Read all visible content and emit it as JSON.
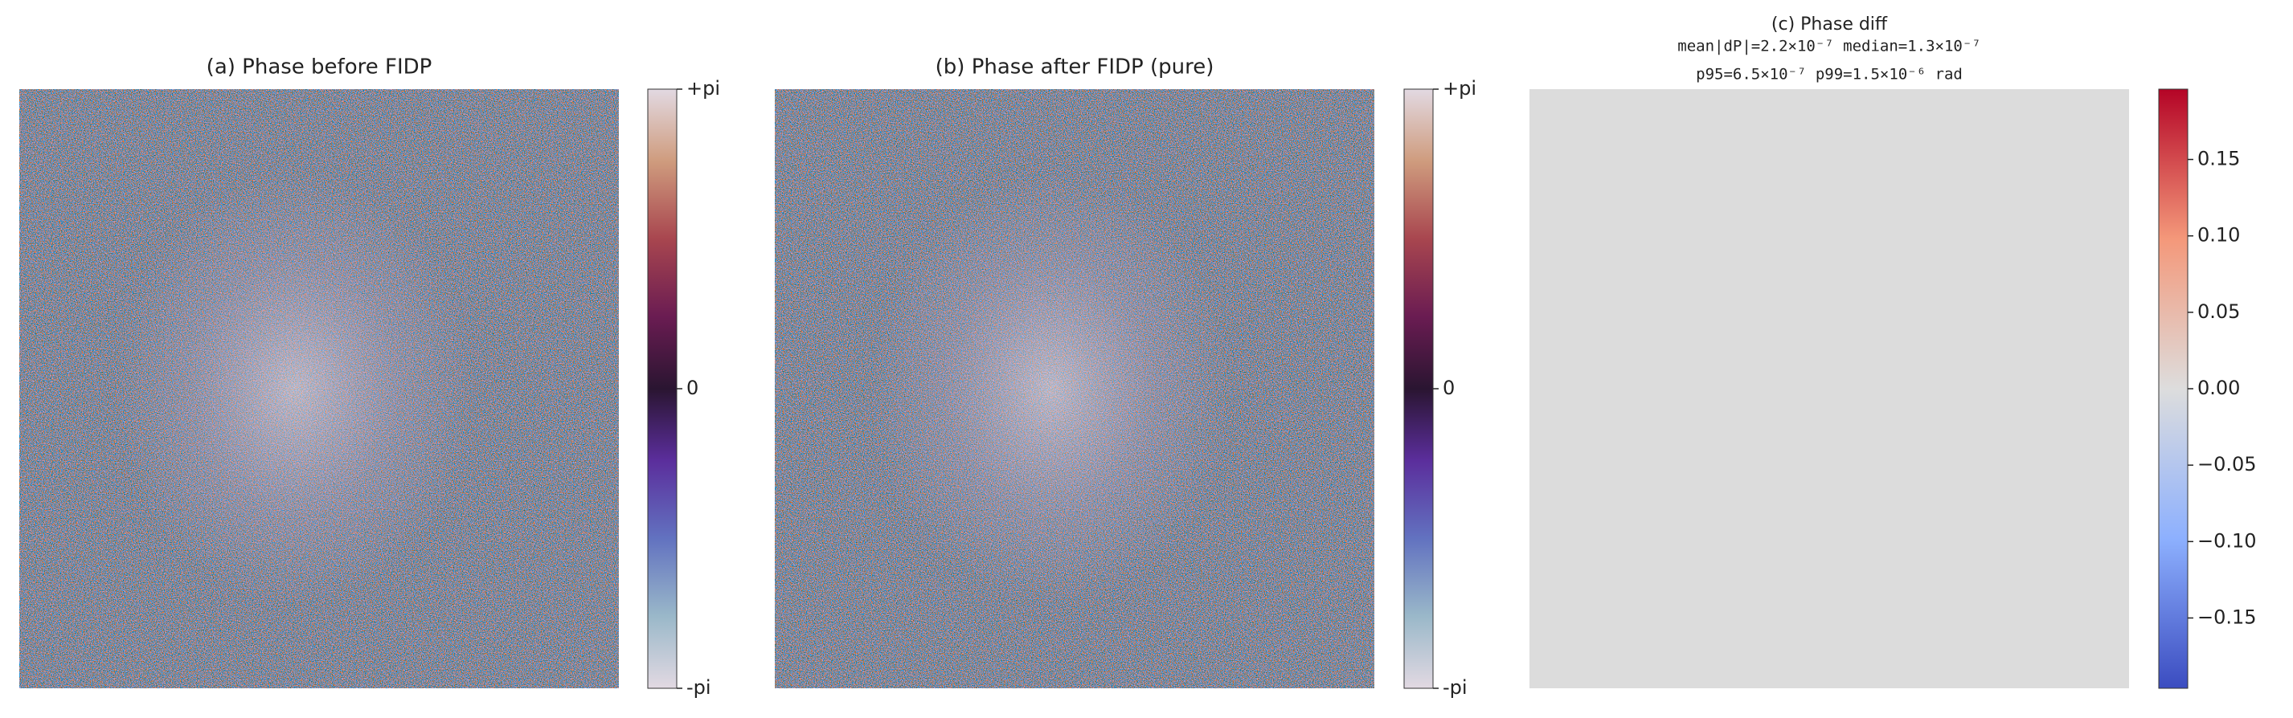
{
  "chart_data": [
    {
      "type": "heatmap",
      "title": "(a) Phase before FIDP",
      "colormap": "twilight_shifted",
      "clim": [
        -3.14159,
        3.14159
      ],
      "cticks": [
        {
          "value": -3.14159,
          "label": "-pi"
        },
        0,
        {
          "value": 3.14159,
          "label": "+pi"
        }
      ]
    },
    {
      "type": "heatmap",
      "title": "(b) Phase after FIDP (pure)",
      "colormap": "twilight_shifted",
      "clim": [
        -3.14159,
        3.14159
      ],
      "cticks": [
        {
          "value": -3.14159,
          "label": "-pi"
        },
        0,
        {
          "value": 3.14159,
          "label": "+pi"
        }
      ]
    },
    {
      "type": "heatmap",
      "title": "(c) Phase diff",
      "subtitle": [
        "mean|dP|=2.2×10⁻⁷  median=1.3×10⁻⁷",
        "p95=6.5×10⁻⁷  p99=1.5×10⁻⁶ rad"
      ],
      "colormap": "coolwarm",
      "clim": [
        -0.196,
        0.196
      ],
      "cticks": [
        {
          "value": -0.15,
          "label": "−0.15"
        },
        {
          "value": -0.1,
          "label": "−0.10"
        },
        {
          "value": -0.05,
          "label": "−0.05"
        },
        {
          "value": 0,
          "label": "0.00"
        },
        0.05,
        {
          "value": 0.1,
          "label": "0.10"
        },
        0.15
      ]
    }
  ]
}
